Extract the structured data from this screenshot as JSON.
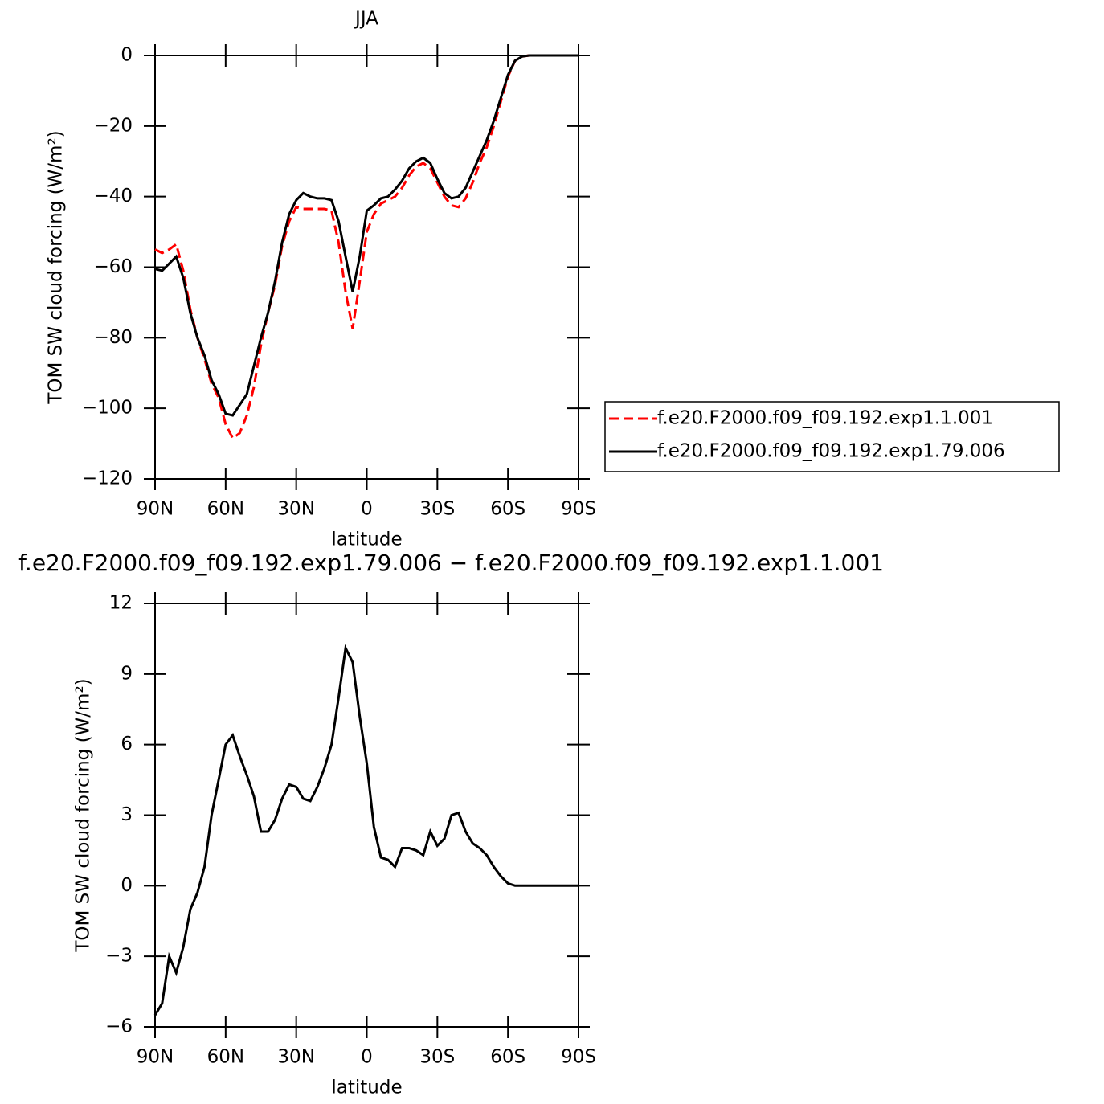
{
  "chart_data": [
    {
      "type": "line",
      "title": "JJA",
      "xlabel": "latitude",
      "ylabel": "TOM SW cloud forcing (W/m²)",
      "x": [
        90,
        87,
        84,
        81,
        78,
        75,
        72,
        69,
        66,
        63,
        60,
        57,
        54,
        51,
        48,
        45,
        42,
        39,
        36,
        33,
        30,
        27,
        24,
        21,
        18,
        15,
        12,
        9,
        6,
        3,
        0,
        -3,
        -6,
        -9,
        -12,
        -15,
        -18,
        -21,
        -24,
        -27,
        -30,
        -33,
        -36,
        -39,
        -42,
        -45,
        -48,
        -51,
        -54,
        -57,
        -60,
        -63,
        -66,
        -69,
        -72,
        -75,
        -78,
        -81,
        -84,
        -87,
        -90
      ],
      "xlim": [
        90,
        -90
      ],
      "xticks": [
        {
          "value": 90,
          "label": "90N"
        },
        {
          "value": 60,
          "label": "60N"
        },
        {
          "value": 30,
          "label": "30N"
        },
        0,
        {
          "value": -30,
          "label": "30S"
        },
        {
          "value": -60,
          "label": "60S"
        },
        {
          "value": -90,
          "label": "90S"
        }
      ],
      "ylim": [
        -120,
        0
      ],
      "yticks": [
        {
          "value": -120,
          "label": "−120"
        },
        {
          "value": -100,
          "label": "−100"
        },
        {
          "value": -80,
          "label": "−80"
        },
        {
          "value": -60,
          "label": "−60"
        },
        {
          "value": -40,
          "label": "−40"
        },
        {
          "value": -20,
          "label": "−20"
        },
        0
      ],
      "legend": "outside-right",
      "series": [
        {
          "name": "f.e20.F2000.f09_f09.192.exp1.1.001",
          "color": "#ff0000",
          "style": "dashed",
          "values": [
            -55,
            -56,
            -55,
            -53.5,
            -61,
            -72,
            -80,
            -86,
            -93,
            -97,
            -104.5,
            -108.5,
            -107,
            -102,
            -94,
            -82,
            -73,
            -65,
            -54,
            -47,
            -43,
            -43.5,
            -43.5,
            -43.5,
            -43.5,
            -44,
            -53,
            -67,
            -77.5,
            -64,
            -50,
            -45,
            -42,
            -41,
            -40,
            -37.5,
            -34,
            -31.5,
            -30.5,
            -32,
            -36,
            -40,
            -42.5,
            -43,
            -40.5,
            -36,
            -30.5,
            -26,
            -20,
            -13,
            -6,
            -1.5,
            -0.3,
            0,
            0,
            0,
            0,
            0,
            0,
            0,
            0
          ]
        },
        {
          "name": "f.e20.F2000.f09_f09.192.exp1.79.006",
          "color": "#000000",
          "style": "solid",
          "values": [
            -60.5,
            -61,
            -59,
            -57,
            -63,
            -73,
            -80,
            -85,
            -92,
            -96,
            -101.5,
            -102,
            -99,
            -96,
            -88,
            -80,
            -73,
            -64,
            -53,
            -45,
            -41,
            -39,
            -40,
            -40.5,
            -40.5,
            -41,
            -47,
            -57,
            -67,
            -57,
            -44,
            -42.5,
            -40.5,
            -40,
            -38,
            -35.5,
            -32,
            -30,
            -29,
            -30.5,
            -35,
            -39,
            -40.5,
            -40,
            -37.5,
            -33,
            -28.5,
            -24,
            -18.5,
            -12,
            -5.5,
            -1.5,
            -0.3,
            0,
            0,
            0,
            0,
            0,
            0,
            0,
            0
          ]
        }
      ]
    },
    {
      "type": "line",
      "title": "f.e20.F2000.f09_f09.192.exp1.79.006 − f.e20.F2000.f09_f09.192.exp1.1.001",
      "xlabel": "latitude",
      "ylabel": "TOM SW cloud forcing (W/m²)",
      "x": [
        90,
        87,
        84,
        81,
        78,
        75,
        72,
        69,
        66,
        63,
        60,
        57,
        54,
        51,
        48,
        45,
        42,
        39,
        36,
        33,
        30,
        27,
        24,
        21,
        18,
        15,
        12,
        9,
        6,
        3,
        0,
        -3,
        -6,
        -9,
        -12,
        -15,
        -18,
        -21,
        -24,
        -27,
        -30,
        -33,
        -36,
        -39,
        -42,
        -45,
        -48,
        -51,
        -54,
        -57,
        -60,
        -63,
        -66,
        -69,
        -72,
        -75,
        -78,
        -81,
        -84,
        -87,
        -90
      ],
      "xlim": [
        90,
        -90
      ],
      "xticks": [
        {
          "value": 90,
          "label": "90N"
        },
        {
          "value": 60,
          "label": "60N"
        },
        {
          "value": 30,
          "label": "30N"
        },
        0,
        {
          "value": -30,
          "label": "30S"
        },
        {
          "value": -60,
          "label": "60S"
        },
        {
          "value": -90,
          "label": "90S"
        }
      ],
      "ylim": [
        -6,
        12
      ],
      "yticks": [
        {
          "value": -6,
          "label": "−6"
        },
        {
          "value": -3,
          "label": "−3"
        },
        0,
        3,
        6,
        9,
        12
      ],
      "series": [
        {
          "color": "#000000",
          "style": "solid",
          "values": [
            -5.5,
            -5,
            -3,
            -3.7,
            -2.6,
            -1,
            -0.3,
            0.8,
            3,
            4.5,
            6,
            6.4,
            5.5,
            4.7,
            3.8,
            2.3,
            2.3,
            2.8,
            3.7,
            4.3,
            4.2,
            3.7,
            3.6,
            4.2,
            5,
            6,
            8,
            10.1,
            9.5,
            7.2,
            5.2,
            2.5,
            1.2,
            1.1,
            0.8,
            1.6,
            1.6,
            1.5,
            1.3,
            2.3,
            1.7,
            2,
            3,
            3.1,
            2.3,
            1.8,
            1.6,
            1.3,
            0.8,
            0.4,
            0.1,
            0,
            0,
            0,
            0,
            0,
            0,
            0,
            0,
            0,
            0
          ]
        }
      ]
    }
  ]
}
